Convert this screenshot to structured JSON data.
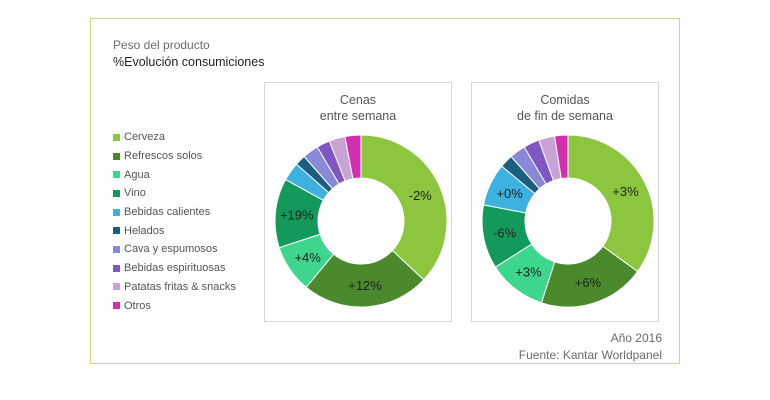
{
  "header": {
    "subtitle": "Peso del producto",
    "title": "%Evolución consumiciones"
  },
  "legend": [
    {
      "label": "Cerveza",
      "color": "#8cc63f"
    },
    {
      "label": "Refrescos solos",
      "color": "#4a8a2c"
    },
    {
      "label": "Agua",
      "color": "#3dd68c"
    },
    {
      "label": "Vino",
      "color": "#139a5a"
    },
    {
      "label": "Bebidas calientes",
      "color": "#3db1e0"
    },
    {
      "label": "Helados",
      "color": "#1a5e80"
    },
    {
      "label": "Cava y espumosos",
      "color": "#8a88d8"
    },
    {
      "label": "Bebidas espirituosas",
      "color": "#7e57c2"
    },
    {
      "label": "Patatas fritas & snacks",
      "color": "#c9a2d6"
    },
    {
      "label": "Otros",
      "color": "#d02fb0"
    }
  ],
  "chart_data": [
    {
      "type": "pie",
      "title": "Cenas entre semana",
      "title_lines": [
        "Cenas",
        "entre semana"
      ],
      "categories": [
        "Cerveza",
        "Refrescos solos",
        "Agua",
        "Vino",
        "Bebidas calientes",
        "Helados",
        "Cava y espumosos",
        "Bebidas espirituosas",
        "Patatas fritas & snacks",
        "Otros"
      ],
      "values": [
        37,
        24,
        9,
        13,
        3.5,
        2,
        3,
        2.5,
        3,
        3
      ],
      "labels": [
        "-2%",
        "+12%",
        "+4%",
        "+19%",
        "",
        "",
        "",
        "",
        "",
        ""
      ]
    },
    {
      "type": "pie",
      "title": "Comidas de fin de semana",
      "title_lines": [
        "Comidas",
        "de fin de semana"
      ],
      "categories": [
        "Cerveza",
        "Refrescos solos",
        "Agua",
        "Vino",
        "Bebidas calientes",
        "Helados",
        "Cava y espumosos",
        "Bebidas espirituosas",
        "Patatas fritas & snacks",
        "Otros"
      ],
      "values": [
        35,
        20,
        11,
        12,
        8,
        2.5,
        3,
        3,
        3,
        2.5
      ],
      "labels": [
        "+3%",
        "+6%",
        "+3%",
        "-6%",
        "+0%",
        "",
        "",
        "",
        "",
        ""
      ]
    }
  ],
  "footer": {
    "year": "Año 2016",
    "source": "Fuente: Kantar Worldpanel"
  }
}
